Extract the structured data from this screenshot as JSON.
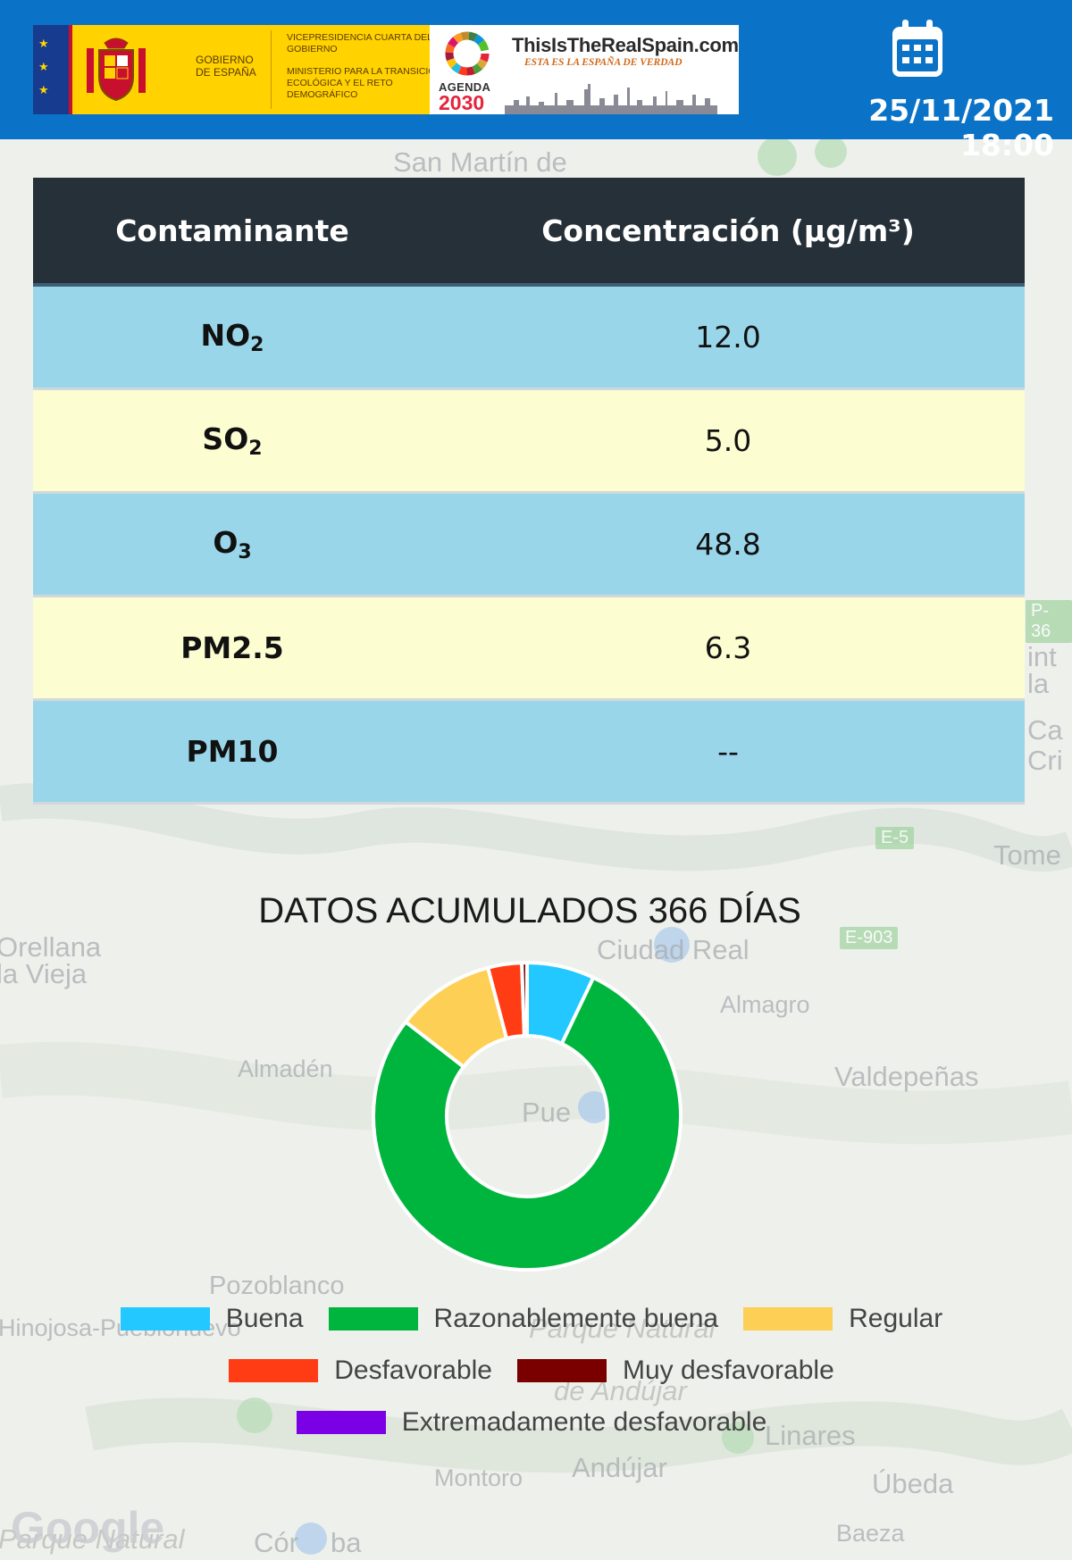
{
  "header": {
    "datetime": "25/11/2021 18:00",
    "icon": "calendar-icon",
    "gov_label": "GOBIERNO DE ESPAÑA",
    "vicepresidencia": "VICEPRESIDENCIA CUARTA DEL GOBIERNO",
    "ministerio": "MINISTERIO PARA LA TRANSICIÓN ECOLÓGICA Y EL RETO DEMOGRÁFICO",
    "agenda_word": "AGENDA",
    "agenda_year": "2030",
    "realspain_title": "ThisIsTheRealSpain.com",
    "realspain_sub": "ESTA ES LA ESPAÑA DE VERDAD"
  },
  "table": {
    "headers": [
      "Contaminante",
      "Concentración (µg/m³)"
    ],
    "rows": [
      {
        "pollutant": "NO2",
        "base": "NO",
        "sub": "2",
        "value": "12.0"
      },
      {
        "pollutant": "SO2",
        "base": "SO",
        "sub": "2",
        "value": "5.0"
      },
      {
        "pollutant": "O3",
        "base": "O",
        "sub": "3",
        "value": "48.8"
      },
      {
        "pollutant": "PM2.5",
        "base": "PM2.5",
        "sub": "",
        "value": "6.3"
      },
      {
        "pollutant": "PM10",
        "base": "PM10",
        "sub": "",
        "value": "--"
      }
    ]
  },
  "chart_data": {
    "type": "pie",
    "title": "DATOS ACUMULADOS 366 DÍAS",
    "categories": [
      "Buena",
      "Razonablemente buena",
      "Regular",
      "Desfavorable",
      "Muy desfavorable",
      "Extremadamente desfavorable"
    ],
    "values": [
      26,
      287,
      38,
      13,
      2,
      0
    ],
    "colors": [
      "#22c8ff",
      "#00b53d",
      "#fdd055",
      "#ff3c14",
      "#7a0000",
      "#7b00e6"
    ],
    "legend_position": "bottom"
  },
  "map_labels": [
    "San Martín de",
    "Orellana la Vieja",
    "Ciudad Real",
    "Almagro",
    "Almadén",
    "Valdepeñas",
    "Pue",
    "Tome",
    "Pozoblanco",
    "Parque Natural",
    "de Andújar",
    "Linares",
    "Andújar",
    "Montoro",
    "Úbeda",
    "Baeza",
    "Cór",
    "ba",
    "Hinojosa-Pueblonuevo",
    "Parque Natural",
    "Ca",
    "Cri",
    "int",
    "la"
  ],
  "road_badges": [
    "E-5",
    "E-903",
    "P-36"
  ],
  "map_logo": "Google",
  "colors": {
    "header_bg": "#0b73c7",
    "table_header_bg": "#263038",
    "row_blue": "#9ad6ea",
    "row_yellow": "#fdfdd2"
  }
}
